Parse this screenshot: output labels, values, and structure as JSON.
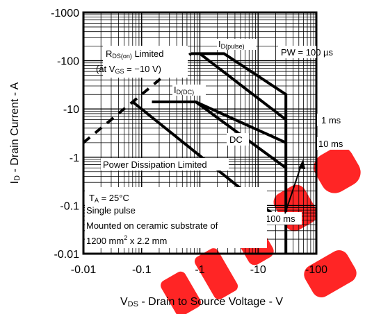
{
  "chart_data": {
    "type": "line",
    "xlabel": {
      "symbol": "V",
      "sub": "DS",
      "text": " - Drain to Source Voltage - V"
    },
    "ylabel": {
      "symbol": "I",
      "sub": "D",
      "text": " - Drain Current - A"
    },
    "x_scale": "log",
    "y_scale": "log",
    "xlim": [
      0.01,
      100
    ],
    "ylim": [
      0.01,
      1000
    ],
    "grid": true,
    "x_ticks": [
      {
        "value": 0.01,
        "label": "-0.01"
      },
      {
        "value": 0.1,
        "label": "-0.1"
      },
      {
        "value": 1,
        "label": "-1"
      },
      {
        "value": 10,
        "label": "-10"
      },
      {
        "value": 100,
        "label": "-100"
      }
    ],
    "y_ticks": [
      {
        "value": 1000,
        "label": "-1000"
      },
      {
        "value": 100,
        "label": "-100"
      },
      {
        "value": 10,
        "label": "-10"
      },
      {
        "value": 1,
        "label": "-1"
      },
      {
        "value": 0.1,
        "label": "-0.1"
      },
      {
        "value": 0.01,
        "label": "-0.01"
      }
    ],
    "series": [
      {
        "id": "rds_limit",
        "style": "dashed",
        "x": [
          0.01,
          0.7
        ],
        "y": [
          2,
          140
        ]
      },
      {
        "id": "pw_100us",
        "style": "solid",
        "x": [
          0.7,
          2.6,
          30,
          30
        ],
        "y": [
          140,
          140,
          20,
          0.01
        ]
      },
      {
        "id": "pw_1ms",
        "style": "solid",
        "x": [
          1.0,
          30
        ],
        "y": [
          140,
          6
        ]
      },
      {
        "id": "pw_10ms",
        "style": "solid",
        "x": [
          0.15,
          0.85,
          30
        ],
        "y": [
          14,
          14,
          2
        ]
      },
      {
        "id": "pw_100ms",
        "style": "solid",
        "x": [
          0.85,
          30
        ],
        "y": [
          14,
          0.6
        ]
      },
      {
        "id": "dc",
        "style": "solid",
        "x": [
          0.07,
          30
        ],
        "y": [
          14,
          0.04
        ]
      }
    ],
    "annotations": {
      "rds": {
        "line1_a": "R",
        "line1_sub": "DS(on)",
        "line1_b": " Limited",
        "line2_a": "(at V",
        "line2_sub": "GS",
        "line2_b": " = −10 V)"
      },
      "id_pulse": {
        "a": "I",
        "sub": "D(pulse)"
      },
      "id_dc": {
        "a": "I",
        "sub": "D(DC)"
      },
      "pw": "PW = 100 µs",
      "ms1": "1 ms",
      "ms10": "10 ms",
      "ms100": "100 ms",
      "dc": "DC",
      "pdl": "Power Dissipation Limited",
      "ta": {
        "a": "T",
        "sub": "A",
        "b": " = 25°C"
      },
      "single_pulse": "Single pulse",
      "mounted": "Mounted on ceramic substrate of",
      "substrate": {
        "a": "1200 mm",
        "sup": "2",
        "b": " x 2.2 mm"
      }
    },
    "colors": {
      "line": "#000000",
      "grid": "#000000",
      "watermark": "#ff1a1a"
    }
  }
}
